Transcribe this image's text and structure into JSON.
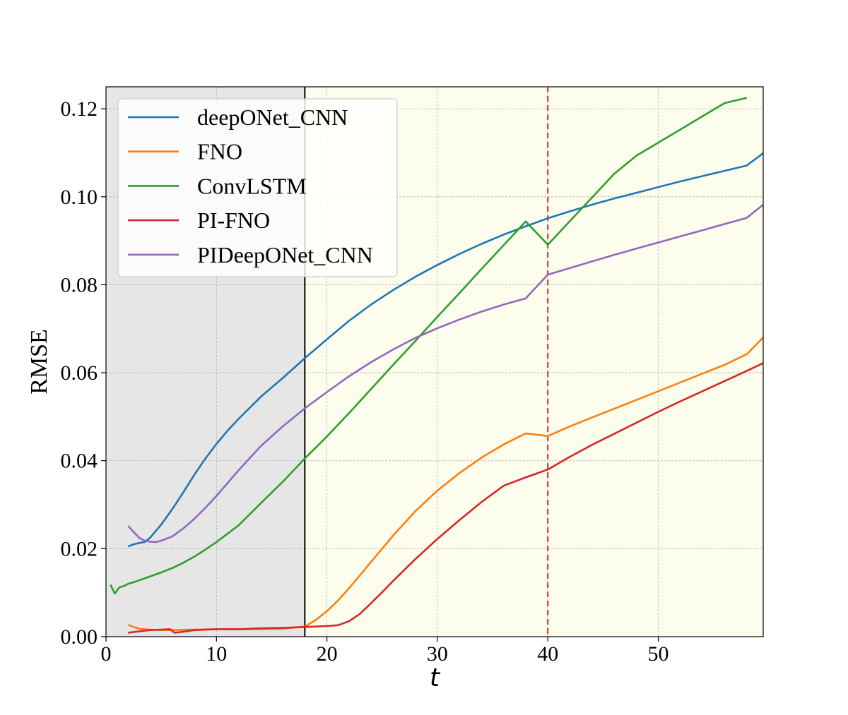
{
  "chart_data": {
    "type": "line",
    "title": "",
    "xlabel": "t",
    "ylabel": "RMSE",
    "xlim": [
      0,
      59.5
    ],
    "ylim": [
      0,
      0.125
    ],
    "xticks": [
      0,
      10,
      20,
      30,
      40,
      50
    ],
    "xtick_labels": [
      "0",
      "10",
      "20",
      "30",
      "40",
      "50"
    ],
    "yticks": [
      0,
      0.02,
      0.04,
      0.06,
      0.08,
      0.1,
      0.12
    ],
    "ytick_labels": [
      "0.00",
      "0.02",
      "0.04",
      "0.06",
      "0.08",
      "0.10",
      "0.12"
    ],
    "grid": true,
    "legend_location": "upper-left",
    "shaded_regions": [
      {
        "x_start": 0,
        "x_end": 18,
        "color": "#e6e6e6"
      },
      {
        "x_start": 18,
        "x_end": 59.5,
        "color": "#fdfdee"
      }
    ],
    "vertical_lines": [
      {
        "x": 18,
        "color": "#000000",
        "style": "solid"
      },
      {
        "x": 40,
        "color": "#d62728",
        "style": "dashed"
      }
    ],
    "series": [
      {
        "name": "deepONet_CNN",
        "color": "#1f77b4",
        "x": [
          2,
          2.5,
          3,
          3.5,
          4,
          5,
          6,
          7,
          8,
          9,
          10,
          11,
          12,
          14,
          16,
          18,
          20,
          22,
          24,
          26,
          28,
          30,
          32,
          34,
          36,
          38,
          40,
          42,
          44,
          46,
          48,
          50,
          52,
          54,
          56,
          58,
          59.5
        ],
        "y": [
          0.0205,
          0.021,
          0.0213,
          0.0215,
          0.0225,
          0.0255,
          0.029,
          0.0328,
          0.0368,
          0.0405,
          0.0438,
          0.0468,
          0.0495,
          0.0545,
          0.0588,
          0.0633,
          0.0676,
          0.0718,
          0.0755,
          0.0788,
          0.0818,
          0.0845,
          0.087,
          0.0893,
          0.0914,
          0.0933,
          0.0951,
          0.0967,
          0.0982,
          0.0996,
          0.1009,
          0.1022,
          0.1035,
          0.1047,
          0.1059,
          0.1071,
          0.1099
        ]
      },
      {
        "name": "FNO",
        "color": "#ff7f0e",
        "x": [
          2,
          2.5,
          3,
          4,
          5,
          6,
          8,
          10,
          12,
          14,
          16,
          18,
          19,
          20,
          21,
          22,
          23,
          24,
          26,
          28,
          30,
          32,
          34,
          36,
          38,
          40,
          42,
          44,
          46,
          48,
          50,
          52,
          54,
          56,
          58,
          59.5
        ],
        "y": [
          0.0027,
          0.0022,
          0.0018,
          0.0016,
          0.0015,
          0.0015,
          0.0016,
          0.0017,
          0.0017,
          0.0017,
          0.0018,
          0.0023,
          0.0038,
          0.0058,
          0.0082,
          0.011,
          0.014,
          0.017,
          0.023,
          0.0285,
          0.0332,
          0.0372,
          0.0407,
          0.0437,
          0.0462,
          0.0456,
          0.0478,
          0.0498,
          0.0518,
          0.0538,
          0.0558,
          0.0578,
          0.0598,
          0.0618,
          0.0642,
          0.068
        ]
      },
      {
        "name": "ConvLSTM",
        "color": "#2ca02c",
        "x": [
          0.4,
          0.8,
          1.2,
          1.6,
          2,
          3,
          4,
          5,
          6,
          7,
          8,
          9,
          10,
          12,
          14,
          16,
          18,
          20,
          22,
          24,
          26,
          28,
          30,
          32,
          34,
          36,
          38,
          40,
          42,
          44,
          46,
          48,
          50,
          52,
          54,
          56,
          58
        ],
        "y": [
          0.0118,
          0.0098,
          0.0112,
          0.0115,
          0.012,
          0.0128,
          0.0137,
          0.0146,
          0.0156,
          0.0168,
          0.0182,
          0.0198,
          0.0215,
          0.0253,
          0.0303,
          0.0352,
          0.0405,
          0.0455,
          0.0508,
          0.0563,
          0.0618,
          0.0672,
          0.0727,
          0.0781,
          0.0836,
          0.089,
          0.0944,
          0.0891,
          0.0945,
          0.0998,
          0.1052,
          0.1093,
          0.1123,
          0.1153,
          0.1183,
          0.1213,
          0.1225
        ]
      },
      {
        "name": "PI-FNO",
        "color": "#d62728",
        "x": [
          2,
          3,
          4,
          5,
          5.8,
          6.2,
          7,
          8,
          10,
          12,
          14,
          16,
          18,
          20,
          21,
          22,
          23,
          24,
          25,
          26,
          28,
          30,
          32,
          34,
          36,
          38,
          40,
          42,
          44,
          46,
          48,
          50,
          52,
          54,
          56,
          58,
          59.5
        ],
        "y": [
          0.0009,
          0.0012,
          0.0015,
          0.0016,
          0.0017,
          0.0009,
          0.0011,
          0.0015,
          0.0017,
          0.0017,
          0.0019,
          0.002,
          0.0022,
          0.0024,
          0.0026,
          0.0035,
          0.0052,
          0.0076,
          0.0101,
          0.0127,
          0.0176,
          0.0222,
          0.0265,
          0.0306,
          0.0343,
          0.0362,
          0.038,
          0.0409,
          0.0436,
          0.0461,
          0.0486,
          0.0511,
          0.0535,
          0.0558,
          0.0581,
          0.0604,
          0.0622
        ]
      },
      {
        "name": "PIDeepONet_CNN",
        "color": "#9467bd",
        "x": [
          2,
          2.5,
          3,
          3.5,
          4,
          4.5,
          5,
          6,
          7,
          8,
          9,
          10,
          12,
          14,
          16,
          18,
          20,
          22,
          24,
          26,
          28,
          30,
          32,
          34,
          36,
          38,
          40,
          42,
          44,
          46,
          48,
          50,
          52,
          54,
          56,
          58,
          59.5
        ],
        "y": [
          0.0252,
          0.0238,
          0.0225,
          0.0218,
          0.0216,
          0.0215,
          0.0218,
          0.0228,
          0.0246,
          0.0268,
          0.0293,
          0.032,
          0.0378,
          0.0433,
          0.0478,
          0.0519,
          0.0556,
          0.0592,
          0.0624,
          0.0653,
          0.0679,
          0.0701,
          0.0721,
          0.0739,
          0.0755,
          0.0769,
          0.0823,
          0.0838,
          0.0853,
          0.0868,
          0.0882,
          0.0896,
          0.091,
          0.0924,
          0.0938,
          0.0952,
          0.0982
        ]
      }
    ]
  }
}
